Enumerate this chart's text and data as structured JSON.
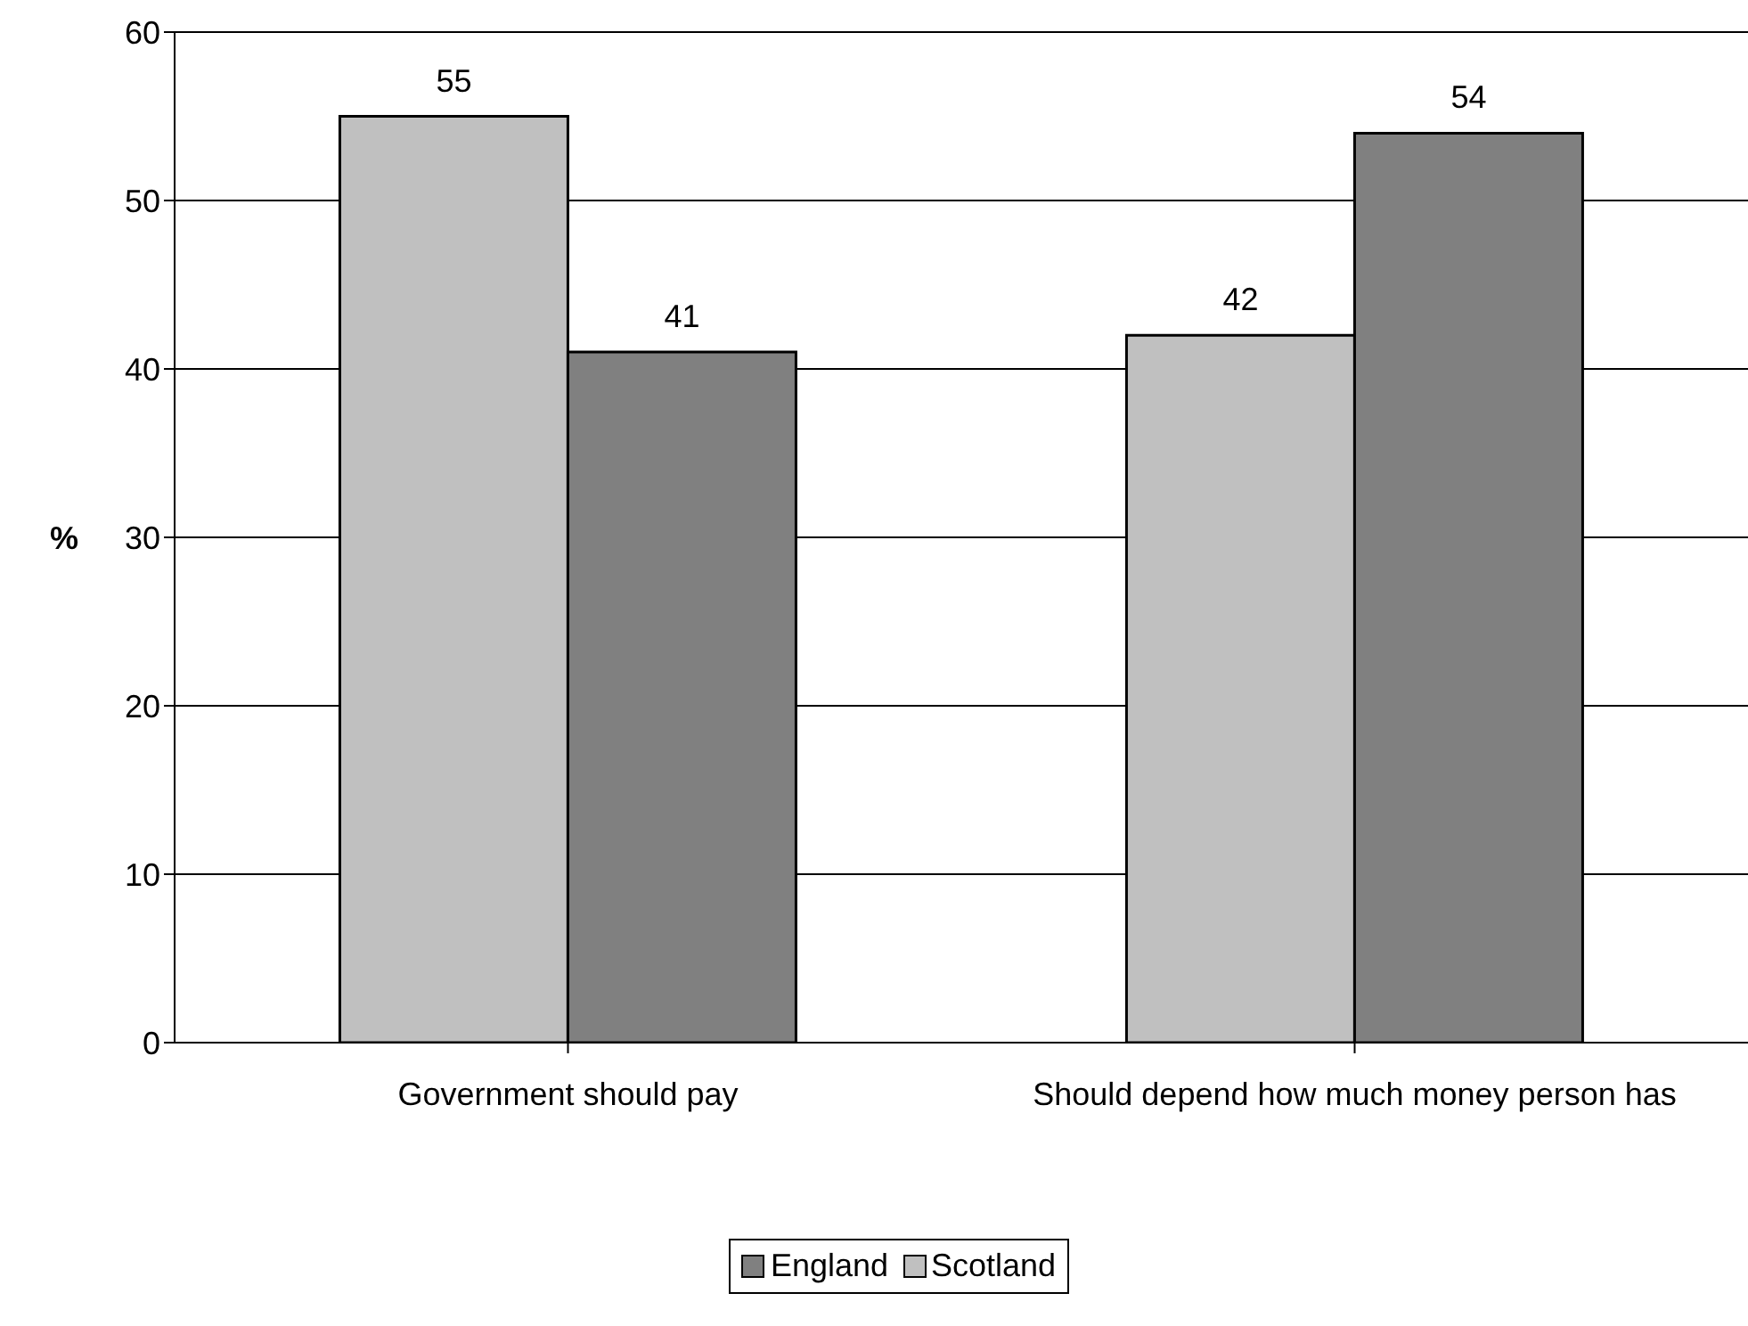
{
  "chart_data": {
    "type": "bar",
    "ylabel": "%",
    "categories": [
      "Government should pay",
      "Should depend how much money person has"
    ],
    "series": [
      {
        "name": "Scotland",
        "color": "#c0c0c0",
        "values": [
          55,
          42
        ]
      },
      {
        "name": "England",
        "color": "#808080",
        "values": [
          41,
          54
        ]
      }
    ],
    "ylim": [
      0,
      60
    ],
    "yticks": [
      0,
      10,
      20,
      30,
      40,
      50,
      60
    ],
    "grid": "y",
    "legend": "bottom",
    "data_labels": true
  }
}
